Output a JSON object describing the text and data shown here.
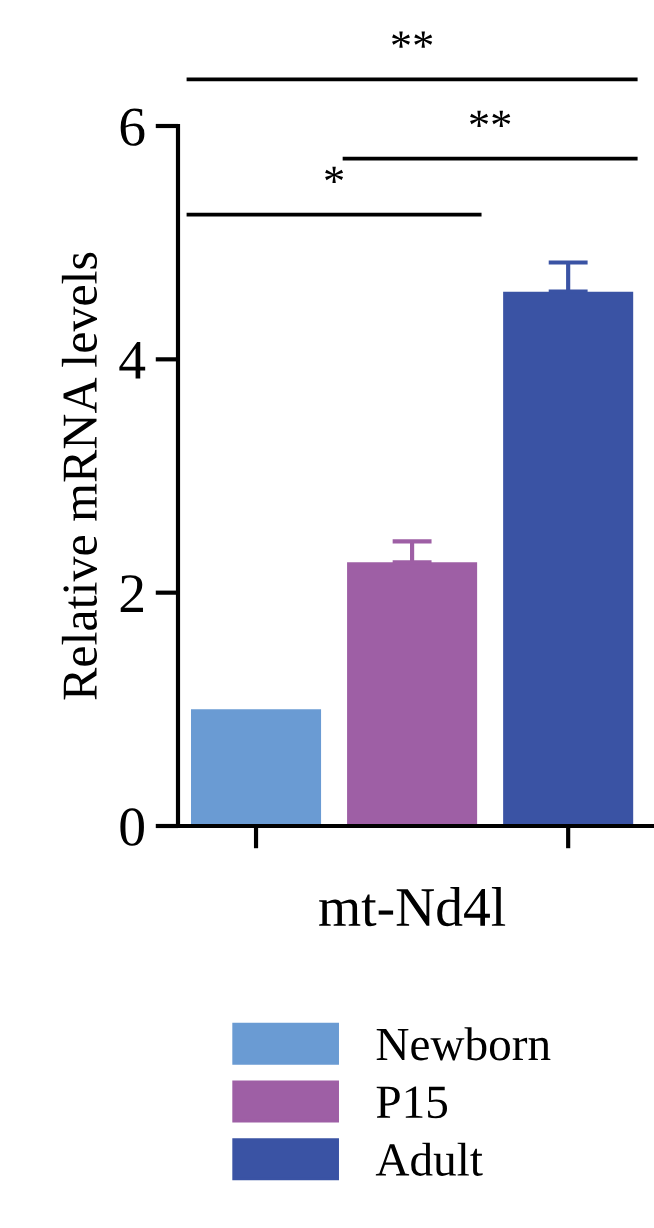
{
  "chart_data": {
    "type": "bar",
    "categories": [
      "mt-Nd4l"
    ],
    "ylabel": "Relative mRNA levels",
    "series": [
      {
        "name": "Newborn",
        "color": "#6a9bd3",
        "values": [
          1.0
        ],
        "errors": [
          0
        ]
      },
      {
        "name": "P15",
        "color": "#9e5fa5",
        "values": [
          2.26
        ],
        "errors": [
          0.18
        ]
      },
      {
        "name": "Adult",
        "color": "#3a53a4",
        "values": [
          4.58
        ],
        "errors": [
          0.25
        ]
      }
    ],
    "ylim": [
      0,
      6
    ],
    "yticks": [
      0,
      2,
      4,
      6
    ],
    "legend": "bottom",
    "grid": false,
    "annotations": [
      "*",
      "**",
      "**"
    ]
  }
}
